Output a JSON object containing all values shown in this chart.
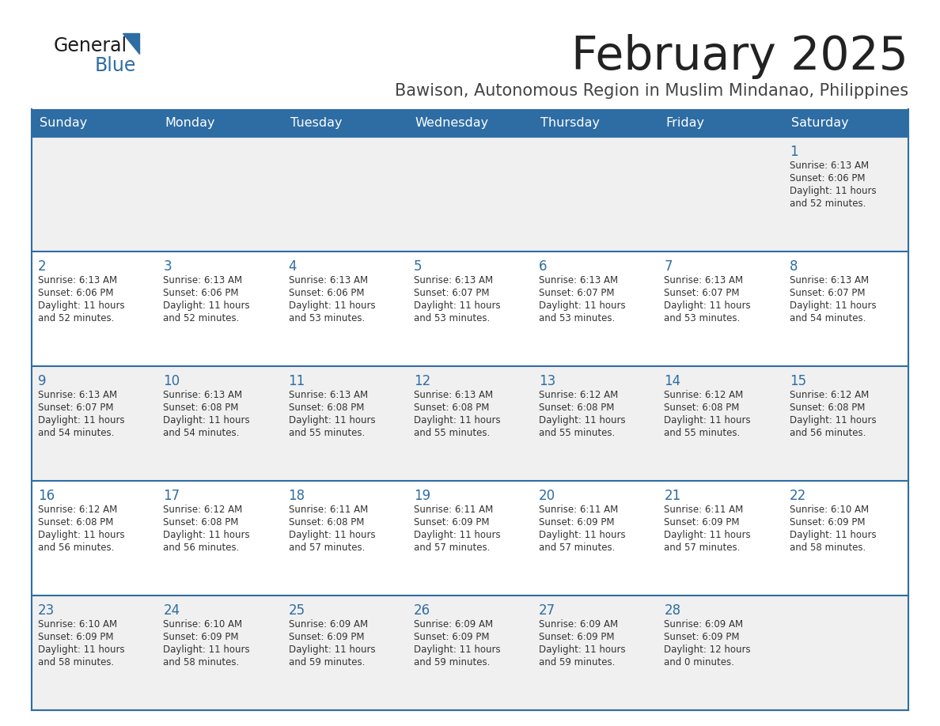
{
  "title": "February 2025",
  "subtitle": "Bawison, Autonomous Region in Muslim Mindanao, Philippines",
  "header_bg": "#2E6DA4",
  "header_text": "#FFFFFF",
  "day_names": [
    "Sunday",
    "Monday",
    "Tuesday",
    "Wednesday",
    "Thursday",
    "Friday",
    "Saturday"
  ],
  "title_color": "#222222",
  "subtitle_color": "#444444",
  "cell_bg_odd": "#F0F0F0",
  "cell_bg_even": "#FFFFFF",
  "day_num_color": "#2E6DA4",
  "info_color": "#333333",
  "line_color": "#2E6DA4",
  "logo_general_color": "#1a1a1a",
  "logo_blue_color": "#2E6DA4",
  "calendar": [
    [
      null,
      null,
      null,
      null,
      null,
      null,
      {
        "day": 1,
        "sunrise": "6:13 AM",
        "sunset": "6:06 PM",
        "daylight": "11 hours\nand 52 minutes."
      }
    ],
    [
      {
        "day": 2,
        "sunrise": "6:13 AM",
        "sunset": "6:06 PM",
        "daylight": "11 hours\nand 52 minutes."
      },
      {
        "day": 3,
        "sunrise": "6:13 AM",
        "sunset": "6:06 PM",
        "daylight": "11 hours\nand 52 minutes."
      },
      {
        "day": 4,
        "sunrise": "6:13 AM",
        "sunset": "6:06 PM",
        "daylight": "11 hours\nand 53 minutes."
      },
      {
        "day": 5,
        "sunrise": "6:13 AM",
        "sunset": "6:07 PM",
        "daylight": "11 hours\nand 53 minutes."
      },
      {
        "day": 6,
        "sunrise": "6:13 AM",
        "sunset": "6:07 PM",
        "daylight": "11 hours\nand 53 minutes."
      },
      {
        "day": 7,
        "sunrise": "6:13 AM",
        "sunset": "6:07 PM",
        "daylight": "11 hours\nand 53 minutes."
      },
      {
        "day": 8,
        "sunrise": "6:13 AM",
        "sunset": "6:07 PM",
        "daylight": "11 hours\nand 54 minutes."
      }
    ],
    [
      {
        "day": 9,
        "sunrise": "6:13 AM",
        "sunset": "6:07 PM",
        "daylight": "11 hours\nand 54 minutes."
      },
      {
        "day": 10,
        "sunrise": "6:13 AM",
        "sunset": "6:08 PM",
        "daylight": "11 hours\nand 54 minutes."
      },
      {
        "day": 11,
        "sunrise": "6:13 AM",
        "sunset": "6:08 PM",
        "daylight": "11 hours\nand 55 minutes."
      },
      {
        "day": 12,
        "sunrise": "6:13 AM",
        "sunset": "6:08 PM",
        "daylight": "11 hours\nand 55 minutes."
      },
      {
        "day": 13,
        "sunrise": "6:12 AM",
        "sunset": "6:08 PM",
        "daylight": "11 hours\nand 55 minutes."
      },
      {
        "day": 14,
        "sunrise": "6:12 AM",
        "sunset": "6:08 PM",
        "daylight": "11 hours\nand 55 minutes."
      },
      {
        "day": 15,
        "sunrise": "6:12 AM",
        "sunset": "6:08 PM",
        "daylight": "11 hours\nand 56 minutes."
      }
    ],
    [
      {
        "day": 16,
        "sunrise": "6:12 AM",
        "sunset": "6:08 PM",
        "daylight": "11 hours\nand 56 minutes."
      },
      {
        "day": 17,
        "sunrise": "6:12 AM",
        "sunset": "6:08 PM",
        "daylight": "11 hours\nand 56 minutes."
      },
      {
        "day": 18,
        "sunrise": "6:11 AM",
        "sunset": "6:08 PM",
        "daylight": "11 hours\nand 57 minutes."
      },
      {
        "day": 19,
        "sunrise": "6:11 AM",
        "sunset": "6:09 PM",
        "daylight": "11 hours\nand 57 minutes."
      },
      {
        "day": 20,
        "sunrise": "6:11 AM",
        "sunset": "6:09 PM",
        "daylight": "11 hours\nand 57 minutes."
      },
      {
        "day": 21,
        "sunrise": "6:11 AM",
        "sunset": "6:09 PM",
        "daylight": "11 hours\nand 57 minutes."
      },
      {
        "day": 22,
        "sunrise": "6:10 AM",
        "sunset": "6:09 PM",
        "daylight": "11 hours\nand 58 minutes."
      }
    ],
    [
      {
        "day": 23,
        "sunrise": "6:10 AM",
        "sunset": "6:09 PM",
        "daylight": "11 hours\nand 58 minutes."
      },
      {
        "day": 24,
        "sunrise": "6:10 AM",
        "sunset": "6:09 PM",
        "daylight": "11 hours\nand 58 minutes."
      },
      {
        "day": 25,
        "sunrise": "6:09 AM",
        "sunset": "6:09 PM",
        "daylight": "11 hours\nand 59 minutes."
      },
      {
        "day": 26,
        "sunrise": "6:09 AM",
        "sunset": "6:09 PM",
        "daylight": "11 hours\nand 59 minutes."
      },
      {
        "day": 27,
        "sunrise": "6:09 AM",
        "sunset": "6:09 PM",
        "daylight": "11 hours\nand 59 minutes."
      },
      {
        "day": 28,
        "sunrise": "6:09 AM",
        "sunset": "6:09 PM",
        "daylight": "12 hours\nand 0 minutes."
      },
      null
    ]
  ]
}
